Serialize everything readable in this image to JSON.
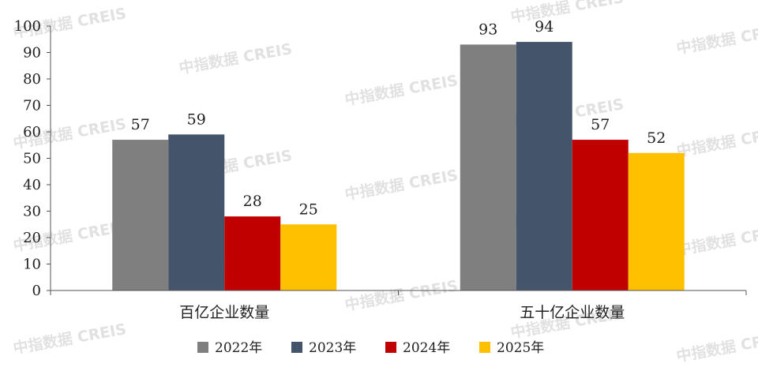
{
  "chart_data": {
    "type": "bar",
    "categories": [
      "百亿企业数量",
      "五十亿企业数量"
    ],
    "series": [
      {
        "name": "2022年",
        "color": "#7f7f7f",
        "values": [
          57,
          93
        ]
      },
      {
        "name": "2023年",
        "color": "#44546a",
        "values": [
          59,
          94
        ]
      },
      {
        "name": "2024年",
        "color": "#c00000",
        "values": [
          28,
          57
        ]
      },
      {
        "name": "2025年",
        "color": "#ffc000",
        "values": [
          25,
          52
        ]
      }
    ],
    "ylim": [
      0,
      100
    ],
    "yticks": [
      "0",
      "10",
      "20",
      "30",
      "40",
      "50",
      "60",
      "70",
      "80",
      "90",
      "100"
    ],
    "grid": false,
    "legend": "bottom-center",
    "watermark": "中指数据 CREIS"
  }
}
